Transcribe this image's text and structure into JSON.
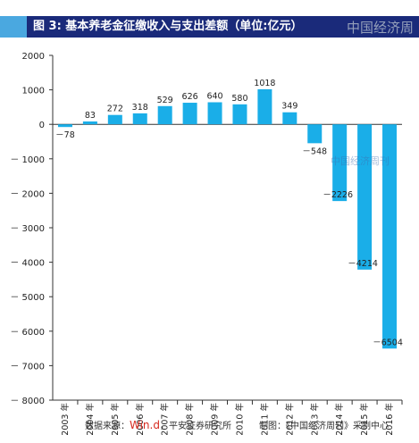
{
  "title": "图 3: 基本养老金征缴收入与支出差额（单位:亿元）",
  "watermark_top": "中国经济周",
  "watermark_mid": "中国经济周刊",
  "source": {
    "prefix": "数据来源：",
    "brand": "Win.d",
    "suffix": "，平安证券研究所"
  },
  "credit": "制图：《中国经济周刊》采制中心",
  "colors": {
    "bar": "#1aaee8",
    "title_bg": "#1a2a7a",
    "title_accent": "#4aa8e0"
  },
  "chart_data": {
    "type": "bar",
    "categories": [
      "2003 年",
      "2004 年",
      "2005 年",
      "2006 年",
      "2007 年",
      "2008 年",
      "2009 年",
      "2010 年",
      "2011 年",
      "2012 年",
      "2013 年",
      "2014 年",
      "2015 年",
      "2016 年"
    ],
    "values": [
      -78,
      83,
      272,
      318,
      529,
      626,
      640,
      580,
      1018,
      349,
      -548,
      -2226,
      -4214,
      -6504
    ],
    "data_labels": [
      "－78",
      "83",
      "272",
      "318",
      "529",
      "626",
      "640",
      "580",
      "1018",
      "349",
      "－548",
      "－2226",
      "－4214",
      "－6504"
    ],
    "y_ticks": [
      2000,
      1000,
      0,
      -1000,
      -2000,
      -3000,
      -4000,
      -5000,
      -6000,
      -7000,
      -8000
    ],
    "y_tick_labels": [
      "2000",
      "1000",
      "0",
      "－ 1000",
      "－ 2000",
      "－ 3000",
      "－ 4000",
      "－ 5000",
      "－ 6000",
      "－ 7000",
      "－ 8000"
    ],
    "ylim": [
      -8000,
      2000
    ],
    "xlabel": "",
    "ylabel": "",
    "grid": false
  }
}
